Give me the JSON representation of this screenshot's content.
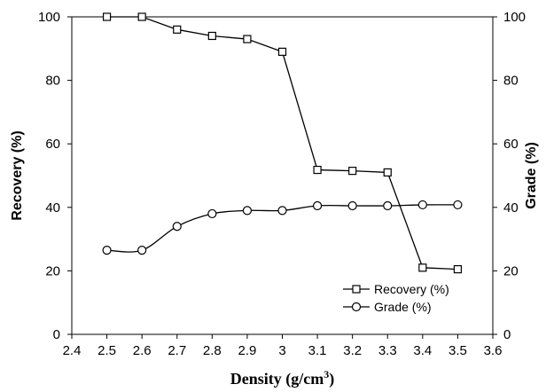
{
  "chart_data": {
    "type": "line",
    "xlabel": "Density (g/cm³)",
    "ylabel_left": "Recovery (%)",
    "ylabel_right": "Grade (%)",
    "xlim": [
      2.4,
      3.6
    ],
    "ylim_left": [
      0,
      100
    ],
    "ylim_right": [
      0,
      100
    ],
    "xticks": [
      "2.4",
      "2.5",
      "2.6",
      "2.7",
      "2.8",
      "2.9",
      "3",
      "3.1",
      "3.2",
      "3.3",
      "3.4",
      "3.5",
      "3.6"
    ],
    "yticks_left": [
      "0",
      "20",
      "40",
      "60",
      "80",
      "100"
    ],
    "yticks_right": [
      "0",
      "20",
      "40",
      "60",
      "80",
      "100"
    ],
    "grid": false,
    "legend_position": "lower-right",
    "series": [
      {
        "name": "Recovery (%)",
        "axis": "left",
        "marker": "square",
        "x": [
          2.5,
          2.6,
          2.7,
          2.8,
          2.9,
          3.0,
          3.1,
          3.2,
          3.3,
          3.4,
          3.5
        ],
        "values": [
          100,
          100,
          96,
          94,
          93,
          89,
          51.8,
          51.5,
          51,
          21,
          20.5
        ]
      },
      {
        "name": "Grade (%)",
        "axis": "right",
        "marker": "circle",
        "x": [
          2.5,
          2.6,
          2.7,
          2.8,
          2.9,
          3.0,
          3.1,
          3.2,
          3.3,
          3.4,
          3.5
        ],
        "values": [
          26.5,
          26.5,
          34,
          38,
          39,
          39,
          40.5,
          40.5,
          40.5,
          40.8,
          40.8
        ]
      }
    ]
  }
}
